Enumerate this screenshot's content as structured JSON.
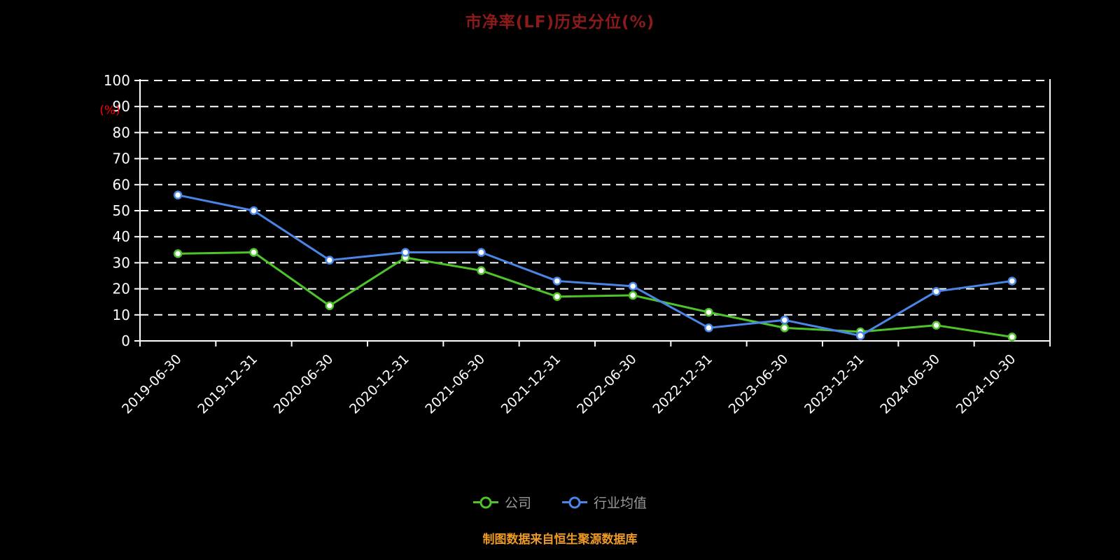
{
  "page": {
    "background": "#000000"
  },
  "chart_data": {
    "type": "line",
    "title": "市净率(LF)历史分位(%)",
    "ylabel": "(%)",
    "ylim": [
      0,
      100
    ],
    "yticks": [
      0,
      10,
      20,
      30,
      40,
      50,
      60,
      70,
      80,
      90,
      100
    ],
    "grid": true,
    "legend_position": "bottom",
    "categories": [
      "2019-06-30",
      "2019-12-31",
      "2020-06-30",
      "2020-12-31",
      "2021-06-30",
      "2021-12-31",
      "2022-06-30",
      "2022-12-31",
      "2023-06-30",
      "2023-12-31",
      "2024-06-30",
      "2024-10-30"
    ],
    "series": [
      {
        "name": "公司",
        "color": "#4ec42a",
        "values": [
          33.5,
          34,
          13.5,
          32,
          27,
          17,
          17.5,
          11,
          5,
          3.5,
          6,
          1.5
        ]
      },
      {
        "name": "行业均值",
        "color": "#4a86e8",
        "values": [
          56,
          50,
          31,
          34,
          34,
          23,
          21,
          5,
          8,
          2,
          19,
          23
        ]
      }
    ],
    "colors": {
      "axis": "#ffffff",
      "grid": "#ffffff",
      "title": "#8b1a1a",
      "ylabel": "#ff0000",
      "legend_text": "#9a9a9a",
      "marker_fill": "#ffffff"
    }
  },
  "footer": {
    "text": "制图数据来自恒生聚源数据库",
    "color": "#ee9a23"
  }
}
